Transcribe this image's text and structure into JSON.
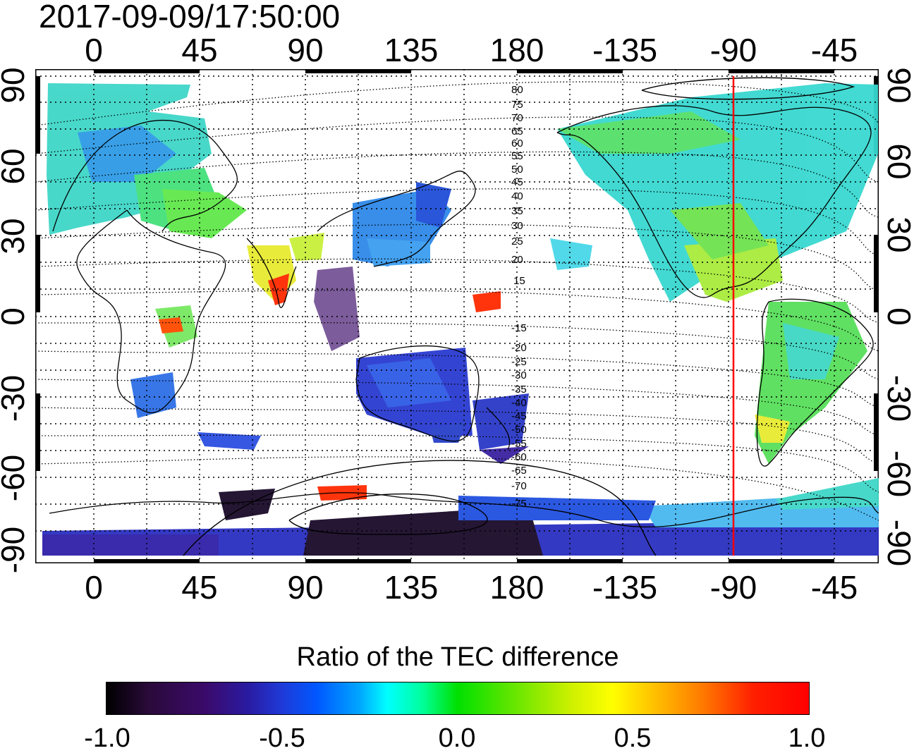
{
  "timestamp": "2017-09-09/17:50:00",
  "axes": {
    "longitude_ticks": [
      "0",
      "45",
      "90",
      "135",
      "180",
      "-135",
      "-90",
      "-45"
    ],
    "latitude_ticks": [
      "90",
      "60",
      "30",
      "0",
      "-30",
      "-60",
      "-90"
    ]
  },
  "contour_labels": [
    "80",
    "75",
    "70",
    "65",
    "60",
    "55",
    "50",
    "45",
    "40",
    "35",
    "30",
    "25",
    "20",
    "15",
    "-15",
    "-20",
    "-25",
    "-30",
    "-35",
    "-40",
    "-45",
    "-50",
    "-55",
    "-60",
    "-65",
    "-70",
    "-75"
  ],
  "meridian_marker": {
    "longitude": "-90",
    "color": "#ff0000"
  },
  "colorbar": {
    "title": "Ratio of the TEC difference",
    "ticks": [
      "-1.0",
      "-0.5",
      "0.0",
      "0.5",
      "1.0"
    ],
    "range": [
      -1.0,
      1.0
    ]
  }
}
